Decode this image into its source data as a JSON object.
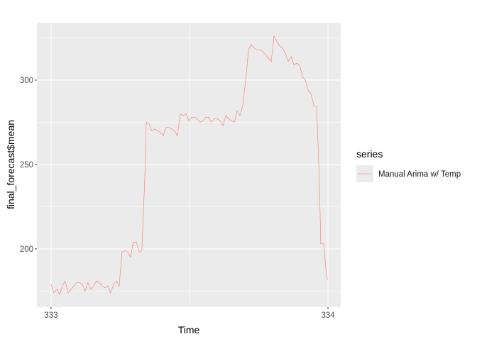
{
  "chart_data": {
    "type": "line",
    "title": "",
    "xlabel": "Time",
    "ylabel": "final_forecast$mean",
    "xlim": [
      332.949,
      334.046
    ],
    "ylim": [
      165.5,
      334
    ],
    "x_ticks": [
      333,
      334
    ],
    "y_ticks": [
      200,
      250,
      300
    ],
    "grid": true,
    "legend": {
      "title": "series",
      "placement": "right",
      "entries": [
        "Manual Arima w/ Temp"
      ]
    },
    "series": [
      {
        "name": "Manual Arima w/ Temp",
        "color": "#F8766D",
        "points": [
          [
            333.0,
            179
          ],
          [
            333.01,
            174
          ],
          [
            333.021,
            176
          ],
          [
            333.031,
            173
          ],
          [
            333.041,
            178
          ],
          [
            333.051,
            181
          ],
          [
            333.062,
            174
          ],
          [
            333.072,
            176
          ],
          [
            333.082,
            178
          ],
          [
            333.092,
            180
          ],
          [
            333.103,
            180
          ],
          [
            333.113,
            179
          ],
          [
            333.123,
            175
          ],
          [
            333.133,
            180
          ],
          [
            333.144,
            176
          ],
          [
            333.154,
            178
          ],
          [
            333.164,
            181
          ],
          [
            333.174,
            180
          ],
          [
            333.185,
            178
          ],
          [
            333.195,
            177
          ],
          [
            333.205,
            178
          ],
          [
            333.215,
            174
          ],
          [
            333.226,
            179
          ],
          [
            333.236,
            181
          ],
          [
            333.246,
            178
          ],
          [
            333.256,
            198
          ],
          [
            333.267,
            199
          ],
          [
            333.277,
            198
          ],
          [
            333.287,
            195
          ],
          [
            333.297,
            204
          ],
          [
            333.308,
            204
          ],
          [
            333.318,
            198
          ],
          [
            333.328,
            199
          ],
          [
            333.338,
            240
          ],
          [
            333.344,
            275
          ],
          [
            333.354,
            274
          ],
          [
            333.364,
            270
          ],
          [
            333.374,
            271
          ],
          [
            333.385,
            270
          ],
          [
            333.395,
            269
          ],
          [
            333.405,
            267
          ],
          [
            333.415,
            272
          ],
          [
            333.426,
            272
          ],
          [
            333.436,
            271
          ],
          [
            333.446,
            270
          ],
          [
            333.456,
            267
          ],
          [
            333.467,
            280
          ],
          [
            333.477,
            279
          ],
          [
            333.487,
            280
          ],
          [
            333.497,
            276
          ],
          [
            333.508,
            278
          ],
          [
            333.518,
            278
          ],
          [
            333.528,
            277
          ],
          [
            333.538,
            275
          ],
          [
            333.549,
            276
          ],
          [
            333.559,
            278
          ],
          [
            333.569,
            278
          ],
          [
            333.579,
            275
          ],
          [
            333.59,
            277
          ],
          [
            333.6,
            277
          ],
          [
            333.61,
            276
          ],
          [
            333.621,
            273
          ],
          [
            333.631,
            279
          ],
          [
            333.641,
            277
          ],
          [
            333.651,
            276
          ],
          [
            333.662,
            275
          ],
          [
            333.672,
            282
          ],
          [
            333.682,
            279
          ],
          [
            333.692,
            285
          ],
          [
            333.703,
            300
          ],
          [
            333.713,
            318
          ],
          [
            333.723,
            321
          ],
          [
            333.733,
            319
          ],
          [
            333.744,
            318
          ],
          [
            333.754,
            318
          ],
          [
            333.764,
            317
          ],
          [
            333.774,
            315
          ],
          [
            333.785,
            313
          ],
          [
            333.795,
            311
          ],
          [
            333.805,
            326
          ],
          [
            333.815,
            323
          ],
          [
            333.826,
            320
          ],
          [
            333.836,
            319
          ],
          [
            333.846,
            316
          ],
          [
            333.856,
            311
          ],
          [
            333.867,
            314
          ],
          [
            333.877,
            309
          ],
          [
            333.887,
            310
          ],
          [
            333.897,
            309
          ],
          [
            333.908,
            302
          ],
          [
            333.918,
            300
          ],
          [
            333.928,
            294
          ],
          [
            333.938,
            292
          ],
          [
            333.949,
            285
          ],
          [
            333.959,
            284
          ],
          [
            333.969,
            240
          ],
          [
            333.974,
            203
          ],
          [
            333.985,
            203
          ],
          [
            333.995,
            183
          ],
          [
            334.0,
            182
          ]
        ]
      }
    ]
  }
}
